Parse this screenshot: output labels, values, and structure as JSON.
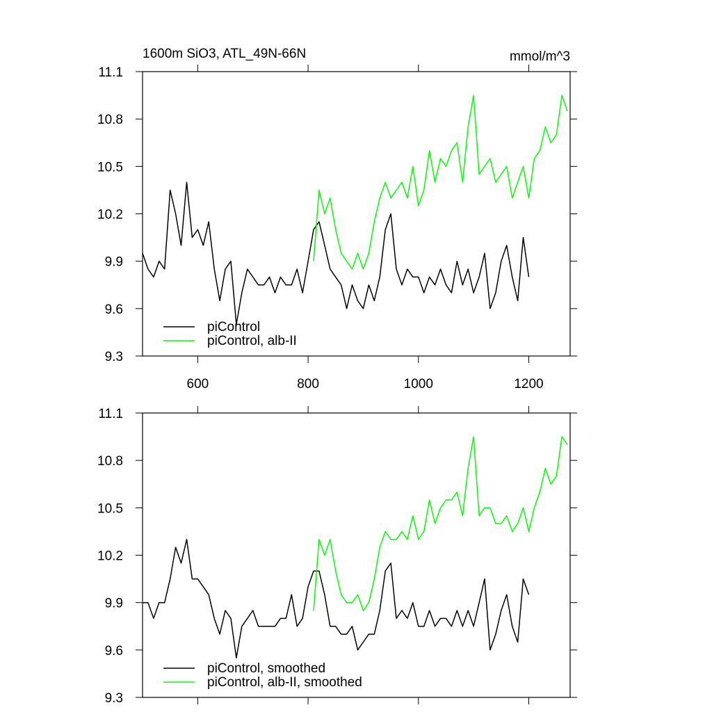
{
  "chart_data": [
    {
      "type": "line",
      "title": "1600m SiO3, ATL_49N-66N",
      "units": "mmol/m^3",
      "xlim": [
        500,
        1275
      ],
      "xticks": [
        600,
        800,
        1000,
        1200
      ],
      "xtick_labels": true,
      "ylim": [
        9.3,
        11.1
      ],
      "yticks": [
        9.3,
        9.6,
        9.9,
        10.2,
        10.5,
        10.8,
        11.1
      ],
      "legend": "lower left",
      "series": [
        {
          "name": "piControl",
          "color": "#000000",
          "x": [
            500,
            510,
            520,
            530,
            540,
            550,
            560,
            570,
            580,
            590,
            600,
            610,
            620,
            630,
            640,
            650,
            660,
            670,
            680,
            690,
            700,
            710,
            720,
            730,
            740,
            750,
            760,
            770,
            780,
            790,
            800,
            810,
            820,
            830,
            840,
            850,
            860,
            870,
            880,
            890,
            900,
            910,
            920,
            930,
            940,
            950,
            960,
            970,
            980,
            990,
            1000,
            1010,
            1020,
            1030,
            1040,
            1050,
            1060,
            1070,
            1080,
            1090,
            1100,
            1110,
            1120,
            1130,
            1140,
            1150,
            1160,
            1170,
            1180,
            1190,
            1200
          ],
          "values": [
            9.95,
            9.85,
            9.8,
            9.9,
            9.85,
            10.35,
            10.2,
            10.0,
            10.4,
            10.05,
            10.1,
            10.0,
            10.15,
            9.85,
            9.65,
            9.85,
            9.9,
            9.5,
            9.7,
            9.85,
            9.8,
            9.75,
            9.75,
            9.8,
            9.7,
            9.8,
            9.75,
            9.75,
            9.85,
            9.7,
            9.9,
            10.1,
            10.15,
            10.0,
            9.85,
            9.8,
            9.75,
            9.6,
            9.75,
            9.65,
            9.6,
            9.75,
            9.65,
            9.8,
            10.1,
            10.2,
            9.85,
            9.75,
            9.85,
            9.8,
            9.8,
            9.7,
            9.8,
            9.75,
            9.85,
            9.75,
            9.7,
            9.9,
            9.75,
            9.85,
            9.7,
            9.8,
            9.95,
            9.6,
            9.7,
            9.9,
            10.0,
            9.8,
            9.65,
            10.05,
            9.8
          ]
        },
        {
          "name": "piControl, alb-II",
          "color": "#00ff00",
          "x": [
            810,
            820,
            830,
            840,
            850,
            860,
            870,
            880,
            890,
            900,
            910,
            920,
            930,
            940,
            950,
            960,
            970,
            980,
            990,
            1000,
            1010,
            1020,
            1030,
            1040,
            1050,
            1060,
            1070,
            1080,
            1090,
            1100,
            1110,
            1120,
            1130,
            1140,
            1150,
            1160,
            1170,
            1180,
            1190,
            1200,
            1210,
            1220,
            1230,
            1240,
            1250,
            1260,
            1270
          ],
          "values": [
            9.9,
            10.35,
            10.2,
            10.3,
            10.1,
            9.95,
            9.9,
            9.85,
            9.95,
            9.85,
            9.95,
            10.15,
            10.3,
            10.4,
            10.3,
            10.35,
            10.4,
            10.3,
            10.5,
            10.25,
            10.35,
            10.6,
            10.4,
            10.55,
            10.5,
            10.6,
            10.65,
            10.4,
            10.75,
            10.95,
            10.45,
            10.5,
            10.55,
            10.4,
            10.45,
            10.5,
            10.3,
            10.4,
            10.5,
            10.3,
            10.55,
            10.6,
            10.75,
            10.65,
            10.7,
            10.95,
            10.85
          ]
        }
      ]
    },
    {
      "type": "line",
      "xlim": [
        500,
        1275
      ],
      "xticks": [
        600,
        800,
        1000,
        1200
      ],
      "xtick_labels": false,
      "ylim": [
        9.3,
        11.1
      ],
      "yticks": [
        9.3,
        9.6,
        9.9,
        10.2,
        10.5,
        10.8,
        11.1
      ],
      "legend": "lower left",
      "series": [
        {
          "name": "piControl, smoothed",
          "color": "#000000",
          "x": [
            500,
            510,
            520,
            530,
            540,
            550,
            560,
            570,
            580,
            590,
            600,
            610,
            620,
            630,
            640,
            650,
            660,
            670,
            680,
            690,
            700,
            710,
            720,
            730,
            740,
            750,
            760,
            770,
            780,
            790,
            800,
            810,
            820,
            830,
            840,
            850,
            860,
            870,
            880,
            890,
            900,
            910,
            920,
            930,
            940,
            950,
            960,
            970,
            980,
            990,
            1000,
            1010,
            1020,
            1030,
            1040,
            1050,
            1060,
            1070,
            1080,
            1090,
            1100,
            1110,
            1120,
            1130,
            1140,
            1150,
            1160,
            1170,
            1180,
            1190,
            1200
          ],
          "values": [
            9.9,
            9.9,
            9.8,
            9.9,
            9.9,
            10.05,
            10.25,
            10.15,
            10.3,
            10.05,
            10.05,
            10.0,
            9.95,
            9.8,
            9.7,
            9.85,
            9.8,
            9.55,
            9.75,
            9.8,
            9.85,
            9.75,
            9.75,
            9.75,
            9.75,
            9.8,
            9.8,
            9.95,
            9.75,
            9.8,
            10.0,
            10.1,
            10.1,
            9.95,
            9.75,
            9.75,
            9.7,
            9.7,
            9.75,
            9.6,
            9.65,
            9.7,
            9.7,
            9.85,
            10.1,
            10.15,
            9.8,
            9.85,
            9.8,
            9.9,
            9.75,
            9.75,
            9.85,
            9.75,
            9.8,
            9.8,
            9.75,
            9.85,
            9.75,
            9.85,
            9.75,
            9.9,
            10.05,
            9.6,
            9.7,
            9.85,
            9.95,
            9.75,
            9.65,
            10.05,
            9.95
          ]
        },
        {
          "name": "piControl, alb-II, smoothed",
          "color": "#00ff00",
          "x": [
            810,
            820,
            830,
            840,
            850,
            860,
            870,
            880,
            890,
            900,
            910,
            920,
            930,
            940,
            950,
            960,
            970,
            980,
            990,
            1000,
            1010,
            1020,
            1030,
            1040,
            1050,
            1060,
            1070,
            1080,
            1090,
            1100,
            1110,
            1120,
            1130,
            1140,
            1150,
            1160,
            1170,
            1180,
            1190,
            1200,
            1210,
            1220,
            1230,
            1240,
            1250,
            1260,
            1270
          ],
          "values": [
            9.85,
            10.3,
            10.2,
            10.3,
            10.1,
            9.95,
            9.9,
            9.9,
            9.95,
            9.85,
            9.9,
            10.05,
            10.25,
            10.35,
            10.3,
            10.3,
            10.35,
            10.3,
            10.45,
            10.3,
            10.35,
            10.55,
            10.4,
            10.5,
            10.55,
            10.55,
            10.6,
            10.45,
            10.75,
            10.95,
            10.45,
            10.5,
            10.5,
            10.4,
            10.4,
            10.45,
            10.35,
            10.4,
            10.5,
            10.35,
            10.5,
            10.6,
            10.75,
            10.65,
            10.7,
            10.95,
            10.9
          ]
        }
      ]
    }
  ]
}
